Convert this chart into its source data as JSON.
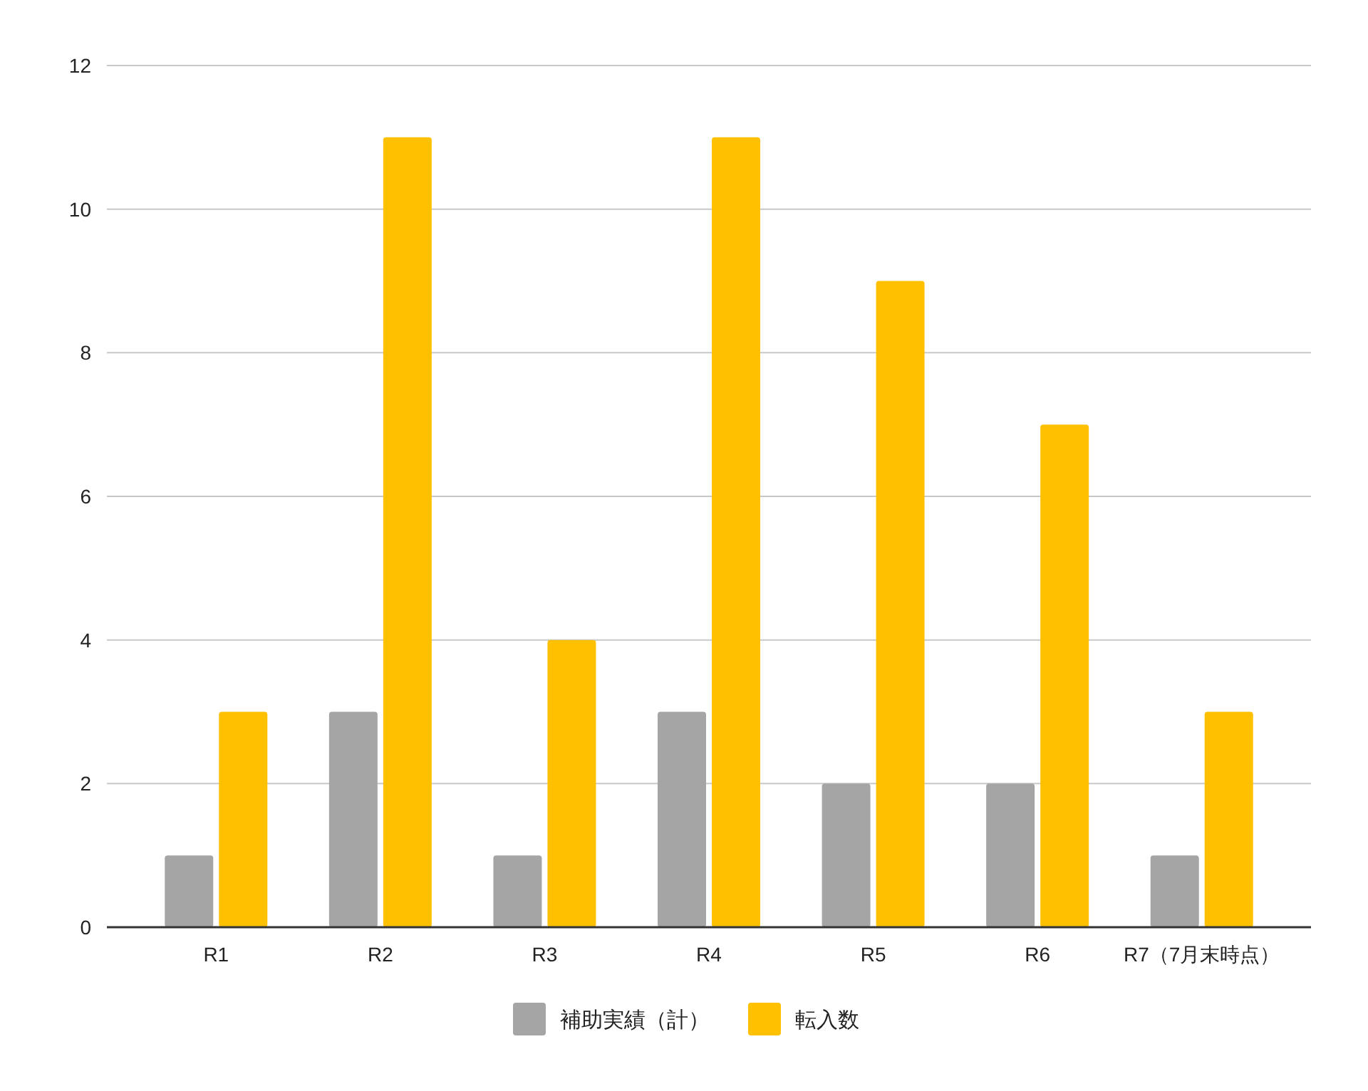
{
  "chart_data": {
    "type": "bar",
    "categories": [
      "R1",
      "R2",
      "R3",
      "R4",
      "R5",
      "R6",
      "R7（7月末時点）"
    ],
    "series": [
      {
        "name": "補助実績（計）",
        "color": "#a5a5a5",
        "values": [
          1,
          3,
          1,
          3,
          2,
          2,
          1
        ]
      },
      {
        "name": "転入数",
        "color": "#ffc000",
        "values": [
          3,
          11,
          4,
          11,
          9,
          7,
          3
        ]
      }
    ],
    "ylim": [
      0,
      12
    ],
    "yticks": [
      0,
      2,
      4,
      6,
      8,
      10,
      12
    ],
    "grid": "y",
    "legend": "bottom"
  }
}
